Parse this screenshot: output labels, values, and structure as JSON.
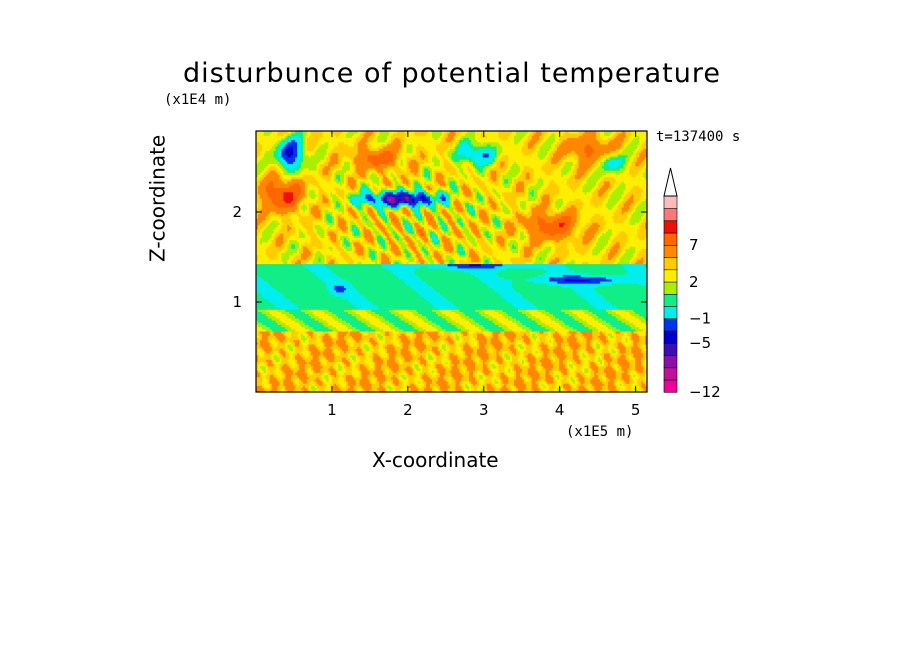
{
  "chart_data": {
    "type": "heatmap",
    "title": "disturbunce of potential temperature",
    "xlabel": "X-coordinate",
    "ylabel": "Z-coordinate",
    "x_unit": "(x1E5 m)",
    "y_unit": "(x1E4 m)",
    "annotation": "t=137400 s",
    "xlim": [
      0,
      5.15
    ],
    "ylim": [
      0,
      2.9
    ],
    "x_ticks": [
      "1",
      "2",
      "3",
      "4",
      "5"
    ],
    "y_ticks": [
      "1",
      "2"
    ],
    "colorbar": {
      "levels": [
        -12,
        -10,
        -8,
        -6,
        -5,
        -3,
        -1,
        0,
        1,
        2,
        3,
        5,
        7,
        9,
        11
      ],
      "tick_labels": [
        "-12",
        "-5",
        "-1",
        "2",
        "7"
      ],
      "colors": [
        "#ee0099",
        "#c0119a",
        "#8a10a8",
        "#3a0fb4",
        "#0000cc",
        "#0033ee",
        "#00eeee",
        "#11ee88",
        "#aaee00",
        "#ffee00",
        "#ffcc00",
        "#ff8800",
        "#ff6600",
        "#ee1100",
        "#ff7777",
        "#ffbbbb"
      ],
      "extend_top": true
    },
    "field": {
      "grid_nx": 200,
      "grid_nz": 120,
      "description_layers": [
        {
          "z_range": [
            0,
            0.7
          ],
          "typical_value": 2.5
        },
        {
          "z_range": [
            0.7,
            0.95
          ],
          "typical_value": 0.5
        },
        {
          "z_range": [
            0.95,
            1.4
          ],
          "typical_value": -1
        },
        {
          "z_range": [
            1.4,
            2.9
          ],
          "typical_value": 1.5
        }
      ]
    }
  }
}
